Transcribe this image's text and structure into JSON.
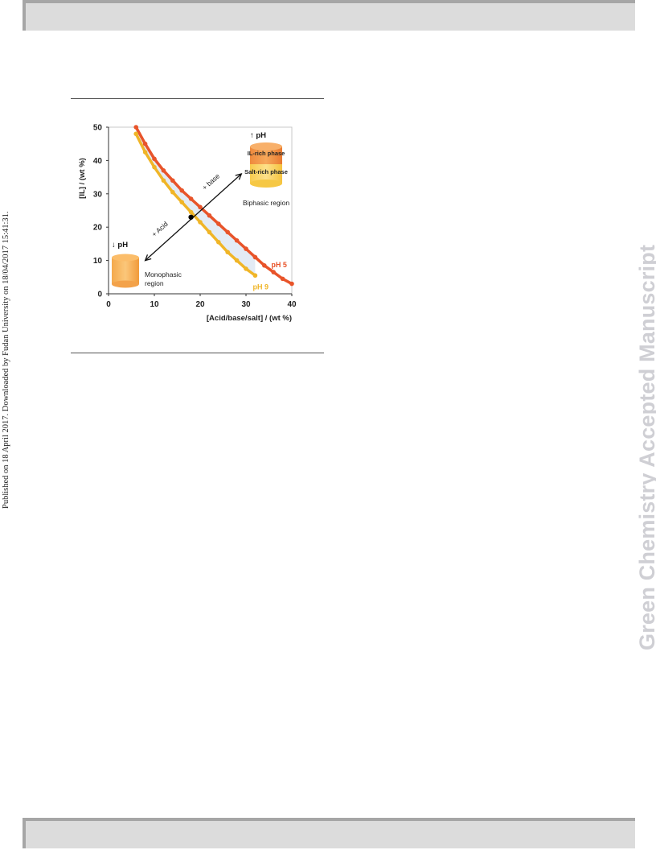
{
  "side_note": "Published on 18 April 2017. Downloaded by Fudan University on 18/04/2017 15:41:31.",
  "watermark": "Green Chemistry Accepted Manuscript",
  "chart_data": {
    "type": "scatter",
    "xlabel": "[Acid/base/salt] / (wt %)",
    "ylabel": "[IL] / (wt %)",
    "xlim": [
      0,
      40
    ],
    "ylim": [
      0,
      50
    ],
    "x_ticks": [
      "0",
      "10",
      "20",
      "30",
      "40"
    ],
    "y_ticks": [
      "0",
      "10",
      "20",
      "30",
      "40",
      "50"
    ],
    "series": [
      {
        "name": "pH 5",
        "color": "#e8542a",
        "x": [
          6,
          8,
          10,
          12,
          14,
          16,
          18,
          20,
          22,
          24,
          26,
          28,
          30,
          32,
          34,
          36,
          38,
          40
        ],
        "y": [
          50,
          45,
          40.5,
          37,
          34,
          31,
          28.5,
          26,
          23.5,
          21,
          18.5,
          16,
          13.5,
          11,
          8.5,
          6.5,
          4.5,
          3
        ]
      },
      {
        "name": "pH 9",
        "color": "#f0b527",
        "x": [
          6,
          8,
          10,
          12,
          14,
          16,
          18,
          20,
          22,
          24,
          26,
          28,
          30,
          32
        ],
        "y": [
          48,
          42.5,
          38,
          34,
          30.5,
          27.5,
          24.5,
          21.5,
          18.5,
          15.5,
          12.5,
          10,
          7.5,
          5.5
        ]
      }
    ],
    "grid": false,
    "annotations": {
      "ph_up": "↑ pH",
      "ph_down": "↓ pH",
      "il_rich": "IL-rich phase",
      "salt_rich": "Salt-rich phase",
      "biphasic": "Biphasic region",
      "monophasic_line1": "Monophasic",
      "monophasic_line2": "region",
      "plus_base": "+ base",
      "plus_acid": "+ Acid",
      "label_ph5": "pH 5",
      "label_ph9": "pH 9"
    }
  }
}
